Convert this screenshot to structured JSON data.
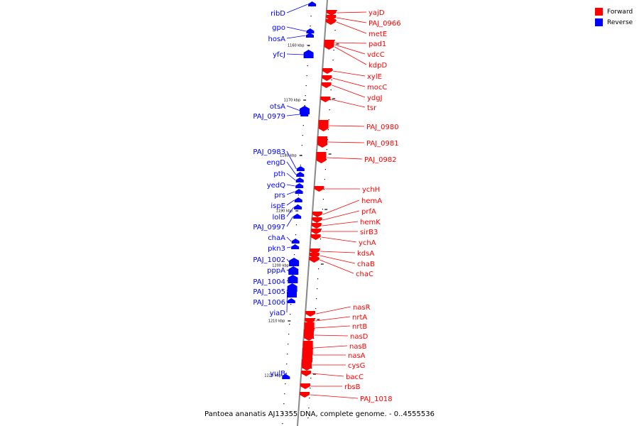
{
  "legend": {
    "forward_label": "Forward",
    "reverse_label": "Reverse",
    "forward_color": "#ff0000",
    "reverse_color": "#0000ff"
  },
  "caption": "Pantoea ananatis AJ13355 DNA, complete genome. - 0..4555536",
  "ticks": [
    "1160 kbp",
    "1170 kbp",
    "1180 kbp",
    "1190 kbp",
    "1200 kbp",
    "1210 kbp",
    "1220 kbp"
  ],
  "reverse_genes": [
    "ribD",
    "gpo",
    "hosA",
    "yfcJ",
    "otsA",
    "PAJ_0979",
    "PAJ_0983",
    "engD",
    "pth",
    "yedQ",
    "prs",
    "ispE",
    "lolB",
    "PAJ_0997",
    "chaA",
    "pkn3",
    "PAJ_1002",
    "pppA",
    "PAJ_1004",
    "PAJ_1005",
    "PAJ_1006",
    "yiaD",
    "yulB"
  ],
  "forward_genes": [
    "yajD",
    "PAJ_0966",
    "metE",
    "pad1",
    "vdcC",
    "kdpD",
    "xylE",
    "mocC",
    "ydgJ",
    "tsr",
    "PAJ_0980",
    "PAJ_0981",
    "PAJ_0982",
    "ychH",
    "hemA",
    "prfA",
    "hemK",
    "sirB3",
    "ychA",
    "kdsA",
    "chaB",
    "chaC",
    "nasR",
    "nrtA",
    "nrtB",
    "nasD",
    "nasB",
    "nasA",
    "cysG",
    "bacC",
    "rbsB",
    "PAJ_1018"
  ]
}
